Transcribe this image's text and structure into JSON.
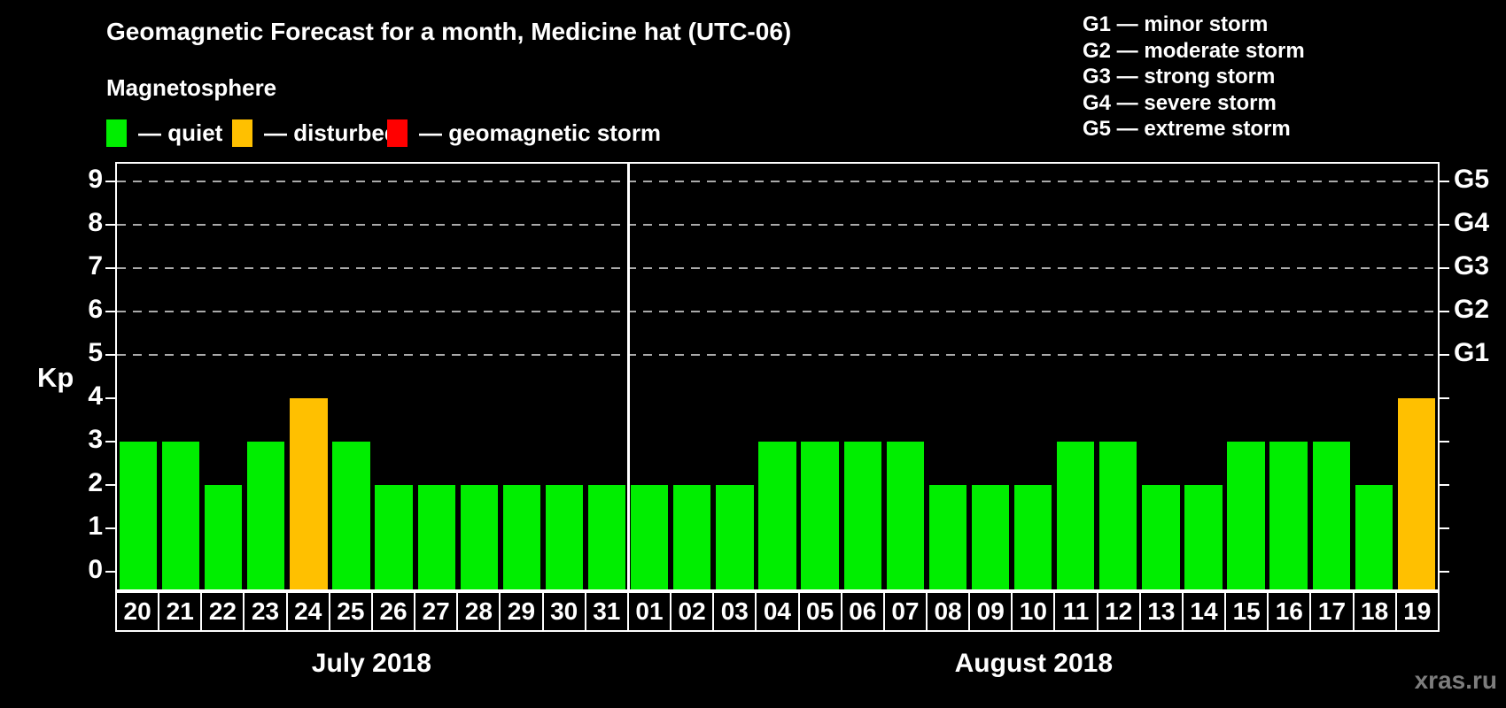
{
  "title": "Geomagnetic Forecast for a month, Medicine hat (UTC-06)",
  "watermark": "xras.ru",
  "magnetosphere_legend": {
    "title": "Magnetosphere",
    "items": [
      {
        "name": "quiet",
        "label": "— quiet",
        "color": "#00EE00"
      },
      {
        "name": "disturbed",
        "label": "— disturbed",
        "color": "#FFC000"
      },
      {
        "name": "storm",
        "label": "— geomagnetic storm",
        "color": "#FF0000"
      }
    ]
  },
  "g_scale_legend": [
    "G1 — minor storm",
    "G2 — moderate storm",
    "G3 — strong storm",
    "G4 — severe storm",
    "G5 — extreme storm"
  ],
  "chart_data": {
    "type": "bar",
    "title": "Geomagnetic Forecast for a month, Medicine hat (UTC-06)",
    "ylabel": "Kp",
    "ylim": [
      -0.4,
      9.4
    ],
    "yticks": [
      0,
      1,
      2,
      3,
      4,
      5,
      6,
      7,
      8,
      9
    ],
    "gridlines": [
      5,
      6,
      7,
      8,
      9
    ],
    "grid_style": "dashed",
    "legend_position": "top",
    "right_labels": [
      {
        "value": 5,
        "label": "G1"
      },
      {
        "value": 6,
        "label": "G2"
      },
      {
        "value": 7,
        "label": "G3"
      },
      {
        "value": 8,
        "label": "G4"
      },
      {
        "value": 9,
        "label": "G5"
      }
    ],
    "colors": {
      "quiet": "#00EE00",
      "disturbed": "#FFC000",
      "storm": "#FF0000"
    },
    "groups": [
      {
        "label": "July 2018",
        "categories": [
          "20",
          "21",
          "22",
          "23",
          "24",
          "25",
          "26",
          "27",
          "28",
          "29",
          "30",
          "31"
        ],
        "values": [
          3,
          3,
          2,
          3,
          4,
          3,
          2,
          2,
          2,
          2,
          2,
          2
        ],
        "statuses": [
          "quiet",
          "quiet",
          "quiet",
          "quiet",
          "disturbed",
          "quiet",
          "quiet",
          "quiet",
          "quiet",
          "quiet",
          "quiet",
          "quiet"
        ]
      },
      {
        "label": "August 2018",
        "categories": [
          "01",
          "02",
          "03",
          "04",
          "05",
          "06",
          "07",
          "08",
          "09",
          "10",
          "11",
          "12",
          "13",
          "14",
          "15",
          "16",
          "17",
          "18",
          "19"
        ],
        "values": [
          2,
          2,
          2,
          3,
          3,
          3,
          3,
          2,
          2,
          2,
          3,
          3,
          2,
          2,
          3,
          3,
          3,
          2,
          4
        ],
        "statuses": [
          "quiet",
          "quiet",
          "quiet",
          "quiet",
          "quiet",
          "quiet",
          "quiet",
          "quiet",
          "quiet",
          "quiet",
          "quiet",
          "quiet",
          "quiet",
          "quiet",
          "quiet",
          "quiet",
          "quiet",
          "quiet",
          "disturbed"
        ]
      }
    ]
  }
}
